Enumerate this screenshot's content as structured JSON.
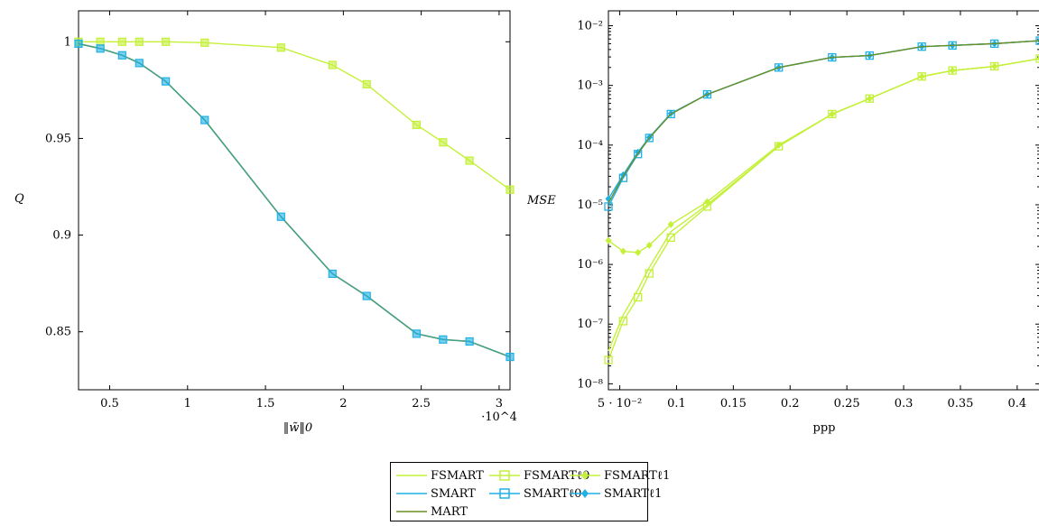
{
  "colors": {
    "fsmart": "#c4f03a",
    "smart": "#1fb0e6",
    "mart": "#6b8f23"
  },
  "legend": {
    "fsmart": "FSMART",
    "fsmart_l0": "FSMARTℓ0",
    "fsmart_l1": "FSMARTℓ1",
    "smart": "SMART",
    "smart_l0": "SMARTℓ0",
    "smart_l1": "SMARTℓ1",
    "mart": "MART"
  },
  "chart_data": [
    {
      "type": "line",
      "xlabel": "‖w̃‖0",
      "ylabel": "Q",
      "x_multiplier": "·10^4",
      "xlim": [
        0.3,
        3.07
      ],
      "ylim": [
        0.82,
        1.016
      ],
      "x_ticks": [
        0.5,
        1,
        1.5,
        2,
        2.5,
        3
      ],
      "x_tick_labels": [
        "0.5",
        "1",
        "1.5",
        "2",
        "2.5",
        "3"
      ],
      "y_ticks": [
        0.85,
        0.9,
        0.95,
        1
      ],
      "y_tick_labels": [
        "0.85",
        "0.9",
        "0.95",
        "1"
      ],
      "series": [
        {
          "name": "FSMART",
          "marker": "square",
          "color": "fsmart",
          "x": [
            0.3,
            0.44,
            0.58,
            0.69,
            0.86,
            1.11,
            1.6,
            1.93,
            2.15,
            2.47,
            2.64,
            2.81,
            3.07
          ],
          "y": [
            1.0,
            1.0,
            1.0,
            1.0,
            1.0,
            0.9995,
            0.997,
            0.988,
            0.978,
            0.957,
            0.948,
            0.9385,
            0.9235
          ]
        },
        {
          "name": "SMART",
          "marker": "square",
          "color": "smart",
          "x": [
            0.3,
            0.44,
            0.58,
            0.69,
            0.86,
            1.11,
            1.6,
            1.93,
            2.15,
            2.47,
            2.64,
            2.81,
            3.07
          ],
          "y": [
            0.999,
            0.9965,
            0.993,
            0.989,
            0.9795,
            0.9595,
            0.9095,
            0.88,
            0.8685,
            0.849,
            0.846,
            0.845,
            0.837
          ]
        }
      ]
    },
    {
      "type": "line",
      "xlabel": "ppp",
      "ylabel": "MSE",
      "yscale": "log",
      "xlim": [
        0.04,
        0.42
      ],
      "ylim_exp": [
        -8.1,
        -1.75
      ],
      "x_ticks": [
        0.05,
        0.1,
        0.15,
        0.2,
        0.25,
        0.3,
        0.35,
        0.4
      ],
      "x_tick_labels": [
        "5 · 10⁻²",
        "0.1",
        "0.15",
        "0.2",
        "0.25",
        "0.3",
        "0.35",
        "0.4"
      ],
      "y_ticks_exp": [
        -8,
        -7,
        -6,
        -5,
        -4,
        -3,
        -2
      ],
      "y_tick_labels": [
        "10⁻⁸",
        "10⁻⁷",
        "10⁻⁶",
        "10⁻⁵",
        "10⁻⁴",
        "10⁻³",
        "10⁻²"
      ],
      "series": [
        {
          "name": "FSMARTℓ0",
          "marker": "square",
          "color": "fsmart",
          "x": [
            0.04,
            0.053,
            0.066,
            0.076,
            0.095,
            0.127,
            0.19,
            0.237,
            0.27,
            0.316,
            0.343,
            0.38,
            0.42
          ],
          "y_exp": [
            -7.6,
            -6.95,
            -6.55,
            -6.15,
            -5.55,
            -5.03,
            -4.02,
            -3.48,
            -3.22,
            -2.85,
            -2.75,
            -2.68,
            -2.55
          ]
        },
        {
          "name": "FSMARTℓ1",
          "marker": "diamond",
          "color": "fsmart",
          "x": [
            0.04,
            0.053,
            0.066,
            0.076,
            0.095,
            0.127,
            0.19,
            0.237,
            0.27,
            0.316,
            0.343,
            0.38,
            0.42
          ],
          "y_exp": [
            -5.6,
            -5.78,
            -5.8,
            -5.68,
            -5.33,
            -4.95,
            -4.0,
            -3.48,
            -3.22,
            -2.85,
            -2.75,
            -2.68,
            -2.55
          ]
        },
        {
          "name": "FSMART",
          "marker": "none",
          "color": "fsmart",
          "x": [
            0.04,
            0.053,
            0.066,
            0.076,
            0.095,
            0.127,
            0.19,
            0.237,
            0.27,
            0.316,
            0.343,
            0.38,
            0.42
          ],
          "y_exp": [
            -7.45,
            -6.85,
            -6.42,
            -6.05,
            -5.45,
            -5.0,
            -4.02,
            -3.48,
            -3.22,
            -2.85,
            -2.75,
            -2.68,
            -2.55
          ]
        },
        {
          "name": "SMARTℓ0",
          "marker": "square",
          "color": "smart",
          "x": [
            0.04,
            0.053,
            0.066,
            0.076,
            0.095,
            0.127,
            0.19,
            0.237,
            0.27,
            0.316,
            0.343,
            0.38,
            0.42
          ],
          "y_exp": [
            -5.03,
            -4.55,
            -4.15,
            -3.88,
            -3.48,
            -3.15,
            -2.7,
            -2.53,
            -2.5,
            -2.35,
            -2.33,
            -2.3,
            -2.25
          ]
        },
        {
          "name": "SMARTℓ1",
          "marker": "diamond",
          "color": "smart",
          "x": [
            0.04,
            0.053,
            0.066,
            0.076,
            0.095,
            0.127,
            0.19,
            0.237,
            0.27,
            0.316,
            0.343,
            0.38,
            0.42
          ],
          "y_exp": [
            -4.9,
            -4.5,
            -4.12,
            -3.87,
            -3.47,
            -3.15,
            -2.7,
            -2.53,
            -2.5,
            -2.35,
            -2.33,
            -2.3,
            -2.25
          ]
        },
        {
          "name": "MART",
          "marker": "none",
          "color": "mart",
          "x": [
            0.04,
            0.053,
            0.066,
            0.076,
            0.095,
            0.127,
            0.19,
            0.237,
            0.27,
            0.316,
            0.343,
            0.38,
            0.42
          ],
          "y_exp": [
            -4.97,
            -4.52,
            -4.14,
            -3.88,
            -3.48,
            -3.15,
            -2.7,
            -2.53,
            -2.5,
            -2.35,
            -2.33,
            -2.3,
            -2.25
          ]
        }
      ]
    }
  ]
}
